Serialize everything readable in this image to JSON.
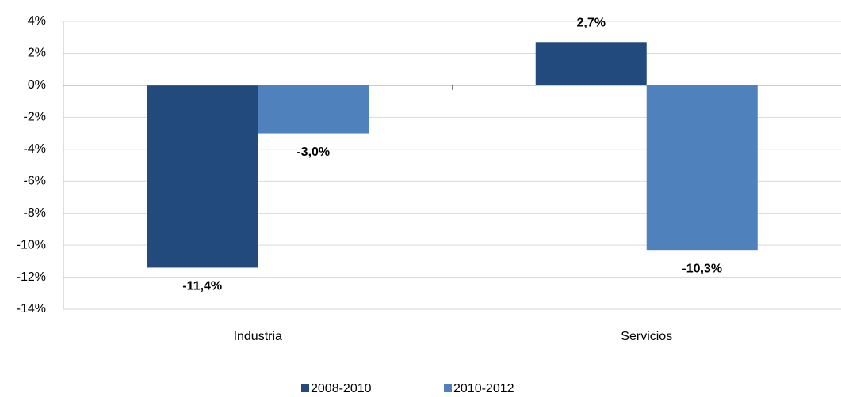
{
  "chart_data": {
    "type": "bar",
    "categories": [
      "Industria",
      "Servicios"
    ],
    "series": [
      {
        "name": "2008-2010",
        "color": "#234a7c",
        "values": [
          -11.4,
          2.7
        ],
        "value_labels": [
          "-11,4%",
          "2,7%"
        ]
      },
      {
        "name": "2010-2012",
        "color": "#4f81bd",
        "values": [
          -3.0,
          -10.3
        ],
        "value_labels": [
          "-3,0%",
          "-10,3%"
        ]
      }
    ],
    "ylim": [
      -14,
      4
    ],
    "yticks": [
      {
        "value": -14,
        "label": "-14%"
      },
      {
        "value": -12,
        "label": "-12%"
      },
      {
        "value": -10,
        "label": "-10%"
      },
      {
        "value": -8,
        "label": "-8%"
      },
      {
        "value": -6,
        "label": "-6%"
      },
      {
        "value": -4,
        "label": "-4%"
      },
      {
        "value": -2,
        "label": "-2%"
      },
      {
        "value": 0,
        "label": "0%"
      },
      {
        "value": 2,
        "label": "2%"
      },
      {
        "value": 4,
        "label": "4%"
      }
    ],
    "grid": true,
    "legend": "bottom"
  }
}
